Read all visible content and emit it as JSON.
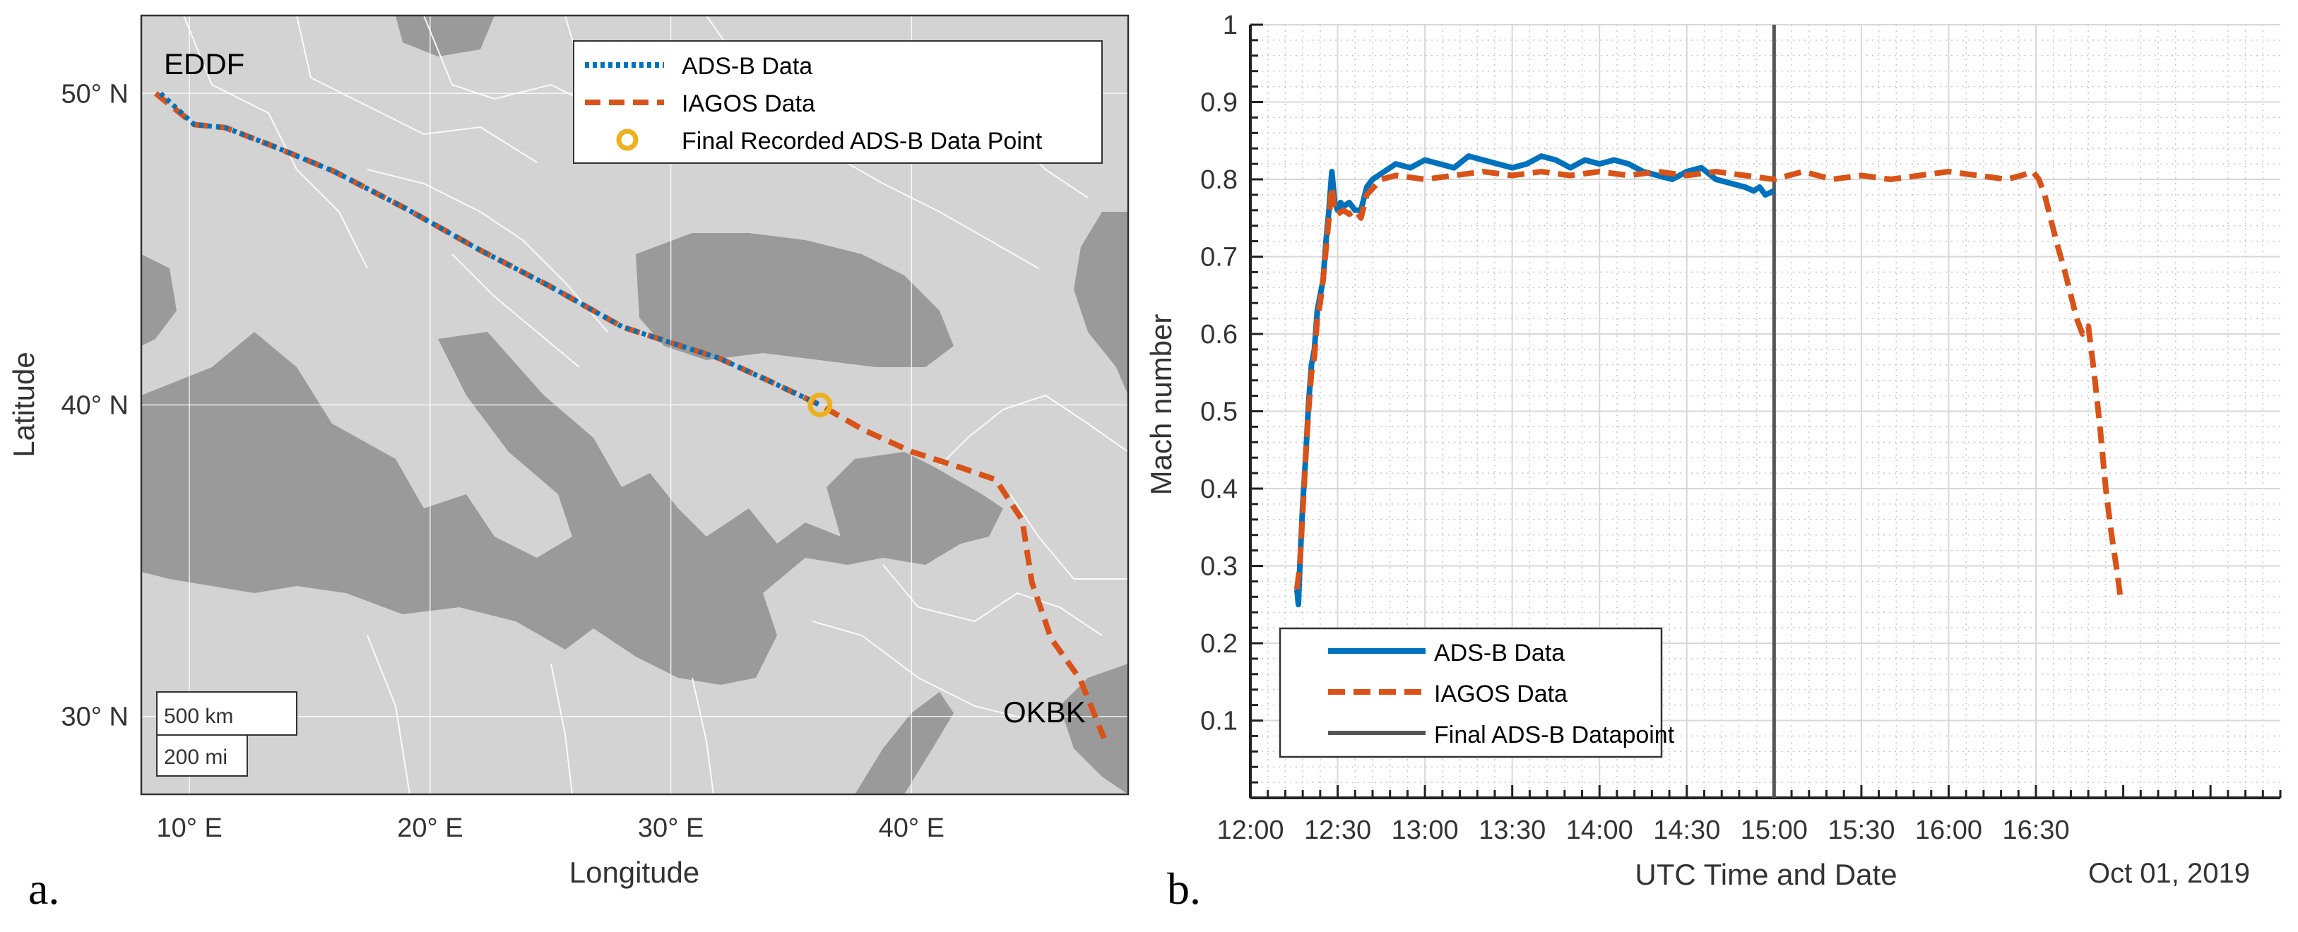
{
  "panel_labels": {
    "a": "a.",
    "b": "b."
  },
  "colors": {
    "adsb": "#0072BD",
    "iagos": "#D95319",
    "final_point": "#EDB120",
    "final_line": "#555555",
    "land": "#d3d3d3",
    "water": "#9a9a9a",
    "border": "#ffffff"
  },
  "chart_data": [
    {
      "type": "line",
      "title": "",
      "xlabel": "Longitude",
      "ylabel": "Latitude",
      "xlim": [
        8,
        49
      ],
      "ylim": [
        27.5,
        52.5
      ],
      "x_ticks": [
        10,
        20,
        30,
        40
      ],
      "x_tick_labels": [
        "10° E",
        "20° E",
        "30° E",
        "40° E"
      ],
      "y_ticks": [
        30,
        40,
        50
      ],
      "y_tick_labels": [
        "30° N",
        "40° N",
        "50° N"
      ],
      "grid": true,
      "legend_position": "top-right",
      "airports": [
        {
          "code": "EDDF",
          "lon": 8.6,
          "lat": 50.0
        },
        {
          "code": "OKBK",
          "lon": 48.0,
          "lat": 29.2
        }
      ],
      "scale_bar": {
        "km_label": "500 km",
        "mi_label": "200 mi"
      },
      "series": [
        {
          "name": "ADS-B Data",
          "lon": [
            8.8,
            10.2,
            11.5,
            13.5,
            16.0,
            19.0,
            22.0,
            25.0,
            28.0,
            30.0,
            32.0,
            34.0,
            36.2
          ],
          "lat": [
            50.0,
            49.0,
            48.9,
            48.3,
            47.5,
            46.3,
            45.0,
            43.8,
            42.5,
            42.0,
            41.5,
            40.8,
            40.0
          ]
        },
        {
          "name": "IAGOS Data",
          "lon": [
            8.6,
            10.2,
            11.5,
            13.5,
            16.0,
            19.0,
            22.0,
            25.0,
            28.0,
            30.0,
            32.0,
            34.0,
            36.2,
            38.0,
            40.0,
            42.0,
            43.5,
            44.6,
            45.0,
            45.8,
            47.0,
            48.0
          ],
          "lat": [
            50.0,
            49.0,
            48.9,
            48.3,
            47.5,
            46.3,
            45.0,
            43.8,
            42.5,
            42.0,
            41.5,
            40.8,
            40.0,
            39.2,
            38.5,
            38.0,
            37.6,
            36.3,
            34.3,
            32.5,
            31.2,
            29.3
          ]
        },
        {
          "name": "Final Recorded ADS-B Data Point",
          "lon": [
            36.2
          ],
          "lat": [
            40.0
          ]
        }
      ]
    },
    {
      "type": "line",
      "title": "",
      "xlabel": "UTC Time and Date",
      "ylabel": "Mach number",
      "date_label": "Oct 01, 2019",
      "xlim": [
        720,
        1074
      ],
      "ylim": [
        0,
        1
      ],
      "x_ticks": [
        720,
        750,
        780,
        810,
        840,
        870,
        900,
        930,
        960,
        990
      ],
      "x_tick_labels": [
        "12:00",
        "12:30",
        "13:00",
        "13:30",
        "14:00",
        "14:30",
        "15:00",
        "15:30",
        "16:00",
        "16:30"
      ],
      "y_ticks": [
        0.1,
        0.2,
        0.3,
        0.4,
        0.5,
        0.6,
        0.7,
        0.8,
        0.9,
        1
      ],
      "y_tick_labels": [
        "0.1",
        "0.2",
        "0.3",
        "0.4",
        "0.5",
        "0.6",
        "0.7",
        "0.8",
        "0.9",
        "1"
      ],
      "grid": true,
      "legend_position": "bottom-left",
      "final_adsb_time": 900,
      "series": [
        {
          "name": "ADS-B Data",
          "x": [
            736,
            736.5,
            737,
            738,
            739,
            740,
            741,
            742,
            743,
            744,
            745,
            746,
            747,
            748,
            749,
            750,
            751,
            752,
            754,
            756,
            758,
            760,
            762,
            764,
            766,
            768,
            770,
            775,
            780,
            785,
            790,
            795,
            800,
            805,
            810,
            815,
            820,
            825,
            830,
            835,
            840,
            845,
            850,
            855,
            860,
            865,
            870,
            875,
            880,
            885,
            890,
            893,
            895,
            897,
            900
          ],
          "y": [
            0.27,
            0.25,
            0.3,
            0.38,
            0.44,
            0.51,
            0.56,
            0.58,
            0.63,
            0.65,
            0.67,
            0.72,
            0.76,
            0.81,
            0.77,
            0.76,
            0.77,
            0.765,
            0.77,
            0.76,
            0.76,
            0.79,
            0.8,
            0.805,
            0.81,
            0.815,
            0.82,
            0.815,
            0.825,
            0.82,
            0.815,
            0.83,
            0.825,
            0.82,
            0.815,
            0.82,
            0.83,
            0.825,
            0.815,
            0.825,
            0.82,
            0.825,
            0.82,
            0.81,
            0.805,
            0.8,
            0.81,
            0.815,
            0.8,
            0.795,
            0.79,
            0.785,
            0.79,
            0.78,
            0.785
          ]
        },
        {
          "name": "IAGOS Data",
          "x": [
            736,
            737,
            738,
            739,
            740,
            741,
            742,
            743,
            744,
            745,
            746,
            747,
            748,
            749,
            750,
            752,
            754,
            756,
            758,
            760,
            765,
            770,
            780,
            790,
            800,
            810,
            820,
            830,
            840,
            850,
            860,
            870,
            880,
            890,
            900,
            910,
            920,
            930,
            940,
            950,
            960,
            970,
            980,
            985,
            989,
            991,
            993,
            995,
            997,
            1000,
            1002,
            1004,
            1006,
            1008,
            1010,
            1012,
            1014,
            1016,
            1018,
            1019
          ],
          "y": [
            0.27,
            0.3,
            0.37,
            0.44,
            0.5,
            0.55,
            0.57,
            0.62,
            0.64,
            0.67,
            0.71,
            0.75,
            0.79,
            0.76,
            0.755,
            0.76,
            0.755,
            0.76,
            0.75,
            0.78,
            0.8,
            0.805,
            0.8,
            0.805,
            0.81,
            0.805,
            0.81,
            0.805,
            0.81,
            0.805,
            0.81,
            0.805,
            0.81,
            0.805,
            0.8,
            0.81,
            0.8,
            0.805,
            0.8,
            0.805,
            0.81,
            0.805,
            0.8,
            0.805,
            0.81,
            0.8,
            0.78,
            0.75,
            0.72,
            0.68,
            0.65,
            0.62,
            0.6,
            0.61,
            0.55,
            0.48,
            0.4,
            0.34,
            0.29,
            0.26
          ]
        },
        {
          "name": "Final ADS-B Datapoint",
          "x": [
            900,
            900
          ],
          "y": [
            0,
            1
          ]
        }
      ]
    }
  ]
}
